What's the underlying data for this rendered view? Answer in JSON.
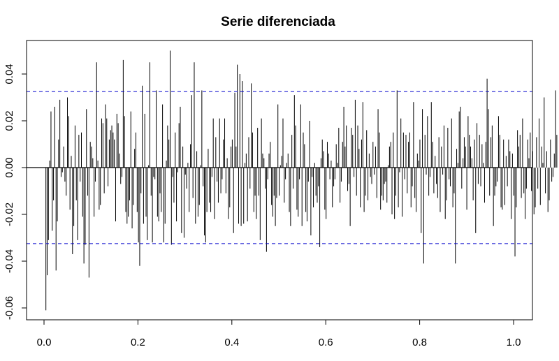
{
  "chart_data": {
    "type": "bar",
    "title": "Serie diferenciada",
    "xlabel": "",
    "ylabel": "",
    "xlim": [
      0.0,
      1.0
    ],
    "ylim": [
      -0.065,
      0.052
    ],
    "xticks": [
      "0.0",
      "0.2",
      "0.4",
      "0.6",
      "0.8",
      "1.0"
    ],
    "yticks": [
      "-0.06",
      "-0.04",
      "-0.02",
      "0.00",
      "0.02",
      "0.04"
    ],
    "reference_lines": {
      "upper": 0.0325,
      "lower": -0.0325,
      "color": "#0000cc",
      "style": "dashed"
    },
    "zero_line": 0,
    "grid": false,
    "bar_color": "#000000",
    "series": [
      {
        "x_start": 0.004,
        "x_step": 0.0027,
        "values": [
          -0.061,
          -0.046,
          -0.031,
          0.003,
          0.024,
          -0.027,
          -0.014,
          0.026,
          -0.044,
          -0.023,
          0.012,
          0.029,
          -0.004,
          -0.002,
          0.009,
          -0.006,
          -0.012,
          0.03,
          0.022,
          -0.018,
          0.005,
          -0.037,
          -0.025,
          0.018,
          -0.014,
          -0.031,
          0.014,
          -0.006,
          0.015,
          -0.021,
          -0.041,
          -0.033,
          0.025,
          -0.012,
          -0.047,
          0.011,
          0.009,
          0.004,
          -0.021,
          -0.006,
          0.045,
          0.003,
          -0.018,
          -0.016,
          0.021,
          0.019,
          -0.011,
          0.027,
          0.021,
          -0.008,
          0.012,
          0.016,
          0.018,
          0.015,
          0.012,
          -0.023,
          0.023,
          0.019,
          0.006,
          -0.007,
          -0.004,
          0.046,
          0.022,
          -0.019,
          -0.024,
          -0.021,
          -0.014,
          0.024,
          -0.026,
          -0.016,
          0.008,
          0.015,
          -0.019,
          -0.032,
          -0.042,
          -0.011,
          0.035,
          -0.024,
          0.023,
          -0.021,
          -0.031,
          0.001,
          0.045,
          -0.012,
          -0.032,
          -0.004,
          -0.005,
          0.033,
          -0.021,
          -0.023,
          -0.011,
          -0.019,
          0.027,
          -0.032,
          -0.024,
          0.003,
          0.018,
          0.012,
          0.05,
          -0.033,
          -0.004,
          -0.015,
          0.015,
          -0.023,
          -0.002,
          0.019,
          0.026,
          -0.028,
          0.009,
          -0.03,
          -0.003,
          -0.009,
          0.002,
          -0.019,
          0.01,
          0.031,
          -0.013,
          0.045,
          -0.024,
          0.007,
          -0.021,
          -0.016,
          0.001,
          0.033,
          -0.008,
          -0.029,
          -0.032,
          -0.019,
          0.008,
          -0.015,
          -0.019,
          -0.004,
          0.021,
          -0.022,
          0.013,
          -0.006,
          -0.015,
          0.021,
          -0.011,
          -0.005,
          0.012,
          0.021,
          -0.011,
          0.004,
          -0.022,
          -0.017,
          0.009,
          0.012,
          -0.028,
          0.032,
          0.009,
          0.044,
          -0.024,
          0.04,
          -0.025,
          0.037,
          -0.024,
          0.002,
          0.006,
          -0.023,
          0.013,
          -0.009,
          0.036,
          0.015,
          -0.019,
          -0.012,
          -0.022,
          0.017,
          -0.012,
          -0.031,
          0.021,
          0.006,
          0.004,
          -0.009,
          -0.036,
          -0.005,
          0.006,
          0.011,
          -0.016,
          -0.021,
          -0.012,
          -0.025,
          -0.013,
          0.027,
          -0.012,
          0.001,
          0.005,
          0.021,
          -0.015,
          -0.005,
          0.002,
          0.006,
          -0.019,
          -0.025,
          0.014,
          -0.009,
          0.031,
          0.018,
          -0.018,
          -0.021,
          -0.005,
          0.027,
          -0.025,
          0.015,
          0.01,
          -0.019,
          -0.023,
          -0.006,
          0.02,
          -0.029,
          -0.004,
          -0.017,
          0.002,
          -0.012,
          -0.015,
          -0.008,
          -0.034,
          0.004,
          0.012,
          0.007,
          -0.018,
          -0.022,
          0.011,
          0.006,
          -0.005,
          0.003,
          -0.017,
          -0.008,
          -0.005,
          0.01,
          0.002,
          0.017,
          -0.015,
          -0.006,
          0.011,
          0.026,
          0.009,
          0.018,
          -0.01,
          -0.007,
          -0.025,
          0.017,
          0.014,
          -0.004,
          0.029,
          -0.012,
          0.018,
          0.008,
          -0.017,
          0.012,
          0.028,
          -0.019,
          -0.012,
          0.016,
          -0.014,
          0.006,
          -0.004,
          -0.007,
          0.011,
          -0.003,
          0.009,
          -0.013,
          0.025,
          0.015,
          -0.018,
          -0.012,
          -0.014,
          -0.007,
          -0.006,
          -0.015,
          0.001,
          0.009,
          0.011,
          -0.02,
          0.015,
          -0.022,
          -0.012,
          0.033,
          -0.017,
          -0.002,
          0.021,
          -0.021,
          0.015,
          -0.005,
          0.014,
          -0.011,
          0.011,
          0.015,
          -0.017,
          -0.008,
          0.028,
          -0.013,
          -0.019,
          0.006,
          0.003,
          0.012,
          -0.028,
          0.025,
          -0.041,
          0.014,
          -0.003,
          0.022,
          -0.012,
          -0.004,
          0.028,
          0.011,
          -0.011,
          0.005,
          -0.007,
          -0.013,
          0.013,
          -0.019,
          0.009,
          -0.003,
          0.018,
          -0.022,
          -0.014,
          0.017,
          -0.005,
          -0.008,
          0.021,
          -0.017,
          -0.011,
          -0.041,
          0.008,
          0.002,
          0.024,
          0.026,
          -0.009,
          0.004,
          0.013,
          0.009,
          -0.018,
          0.022,
          0.014,
          0.009,
          0.004,
          -0.014,
          0.012,
          -0.028,
          0.019,
          -0.007,
          0.014,
          -0.008,
          0.01,
          0.002,
          -0.015,
          0.011,
          0.038,
          0.025,
          -0.012,
          0.013,
          0.018,
          -0.025,
          -0.012,
          -0.008,
          -0.006,
          0.022,
          0.014,
          -0.017,
          -0.018,
          0.012,
          -0.016,
          0.005,
          -0.008,
          0.012,
          0.007,
          -0.022,
          0.006,
          -0.012,
          -0.038,
          -0.017,
          0.016,
          0.009,
          0.014,
          -0.013,
          0.021,
          -0.011,
          -0.022,
          -0.009,
          0.012,
          0.004,
          0.015,
          -0.01,
          0.007,
          -0.02,
          -0.017,
          0.013,
          -0.009,
          0.021,
          -0.016,
          0.009,
          0.002,
          0.03,
          -0.011,
          0.007,
          -0.019,
          -0.014,
          0.012,
          -0.006,
          -0.004,
          0.006,
          0.033,
          0.014
        ]
      }
    ]
  }
}
